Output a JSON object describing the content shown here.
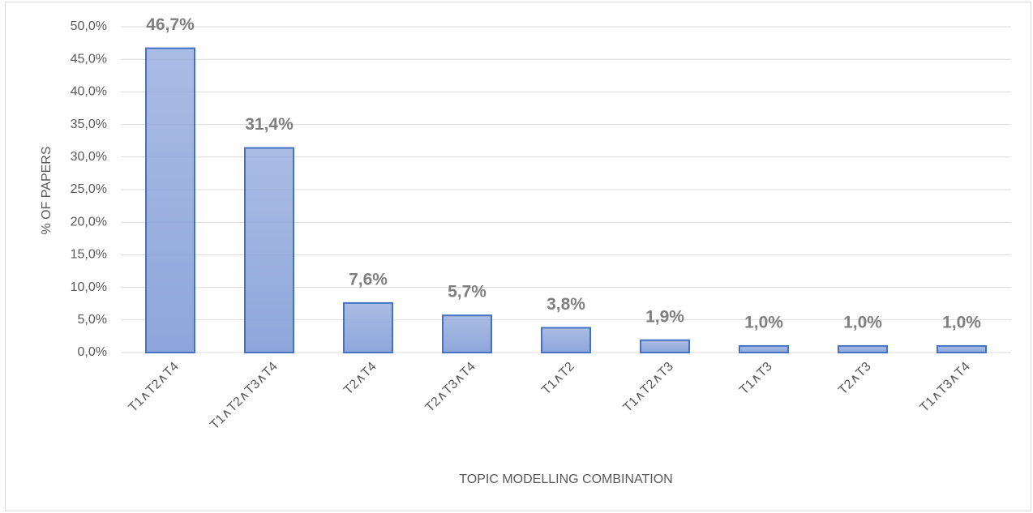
{
  "chart_data": {
    "type": "bar",
    "categories": [
      "T1∧T2∧T4",
      "T1∧T2∧T3∧T4",
      "T2∧T4",
      "T2∧T3∧T4",
      "T1∧T2",
      "T1∧T2∧T3",
      "T1∧T3",
      "T2∧T3",
      "T1∧T3∧T4"
    ],
    "values": [
      46.7,
      31.4,
      7.6,
      5.7,
      3.8,
      1.9,
      1.0,
      1.0,
      1.0
    ],
    "value_labels": [
      "46,7%",
      "31,4%",
      "7,6%",
      "5,7%",
      "3,8%",
      "1,9%",
      "1,0%",
      "1,0%",
      "1,0%"
    ],
    "color": "#8ea6db",
    "edgecolor": "#4472c4",
    "ylabel": "% OF PAPERS",
    "xlabel": "TOPIC MODELLING COMBINATION",
    "ylim": [
      0,
      50
    ],
    "yticks": [
      {
        "value": 0,
        "label": "0,0%"
      },
      {
        "value": 5,
        "label": "5,0%"
      },
      {
        "value": 10,
        "label": "10,0%"
      },
      {
        "value": 15,
        "label": "15,0%"
      },
      {
        "value": 20,
        "label": "20,0%"
      },
      {
        "value": 25,
        "label": "25,0%"
      },
      {
        "value": 30,
        "label": "30,0%"
      },
      {
        "value": 35,
        "label": "35,0%"
      },
      {
        "value": 40,
        "label": "40,0%"
      },
      {
        "value": 45,
        "label": "45,0%"
      },
      {
        "value": 50,
        "label": "50,0%"
      }
    ],
    "grid": true
  }
}
